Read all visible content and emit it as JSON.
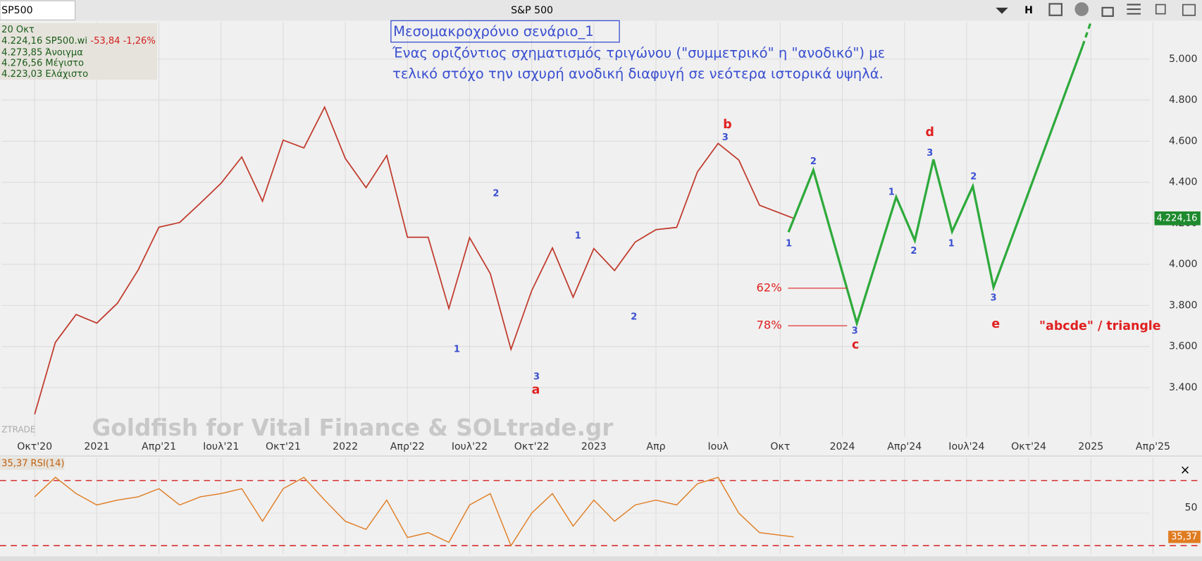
{
  "header": {
    "symbol": "SP500",
    "title": "S&P 500",
    "button": "H"
  },
  "info": {
    "date": "20 Οκτ",
    "last": "4.224,16 SP500.wi",
    "change": "-53,84 -1,26%",
    "open": "4.273,85 Άνοιγμα",
    "high": "4.276,56 Μέγιστο",
    "low": "4.223,03 Ελάχιστο"
  },
  "annotation": {
    "title": "Μεσομακροχρόνιο σενάριο_1",
    "lines": [
      "Ένας οριζόντιος σχηματισμός τριγώνου (\"συμμετρικό\" η \"ανοδικό\") με",
      "τελικό στόχο την ισχυρή ανοδική διαφυγή σε νεότερα ιστορικά υψηλά."
    ]
  },
  "watermark": "Goldfish for Vital Finance & SOLtrade.gr",
  "logo": "ZTRADE",
  "pattern_label": "\"abcde\" / triangle",
  "wave_labels": [
    "1",
    "2",
    "3",
    "a",
    "1",
    "2",
    "3",
    "b",
    "1",
    "2",
    "3",
    "c",
    "1",
    "2",
    "3",
    "d",
    "1",
    "2",
    "3",
    "e"
  ],
  "chart_data": [
    {
      "type": "line",
      "x": [
        0,
        1,
        2,
        3,
        4,
        5,
        6,
        7,
        8,
        9,
        10,
        11,
        12,
        13,
        14,
        15,
        16,
        17,
        18,
        19,
        20,
        21,
        22,
        23,
        24,
        25,
        26,
        27,
        28,
        29,
        30,
        31,
        32,
        33,
        34,
        35,
        36.65
      ],
      "series": [
        {
          "color": "#c0392b",
          "values": [
            3270,
            3620,
            3756,
            3714,
            3811,
            3973,
            4181,
            4204,
            4298,
            4395,
            4523,
            4308,
            4605,
            4567,
            4766,
            4516,
            4374,
            4530,
            4132,
            4132,
            3785,
            4130,
            3955,
            3586,
            3872,
            4080,
            3840,
            4077,
            3970,
            4109,
            4169,
            4180,
            4450,
            4589,
            4508,
            4288,
            4224
          ]
        },
        {
          "color": "#2eaa3c",
          "x": [
            36.4,
            37.6,
            39.7,
            41.6,
            42.5,
            43.4,
            44.3,
            45.3,
            46.3,
            50.6,
            51.1
          ],
          "values": [
            4157,
            4459,
            3713,
            4328,
            4116,
            4511,
            4160,
            4380,
            3888,
            5063,
            5210
          ]
        }
      ],
      "xlim": [
        -1.6,
        55.7
      ],
      "xticks": [
        {
          "value": 0,
          "label": "Οκτ'20"
        },
        {
          "value": 3,
          "label": "2021"
        },
        {
          "value": 6,
          "label": "Απρ'21"
        },
        {
          "value": 9,
          "label": "Ιουλ'21"
        },
        {
          "value": 12,
          "label": "Οκτ'21"
        },
        {
          "value": 15,
          "label": "2022"
        },
        {
          "value": 18,
          "label": "Απρ'22"
        },
        {
          "value": 21,
          "label": "Ιουλ'22"
        },
        {
          "value": 24,
          "label": "Οκτ'22"
        },
        {
          "value": 27,
          "label": "2023"
        },
        {
          "value": 30,
          "label": "Απρ"
        },
        {
          "value": 33,
          "label": "Ιουλ"
        },
        {
          "value": 36,
          "label": "Οκτ"
        },
        {
          "value": 39,
          "label": "2024"
        },
        {
          "value": 42,
          "label": "Απρ'24"
        },
        {
          "value": 45,
          "label": "Ιουλ'24"
        },
        {
          "value": 48,
          "label": "Οκτ'24"
        },
        {
          "value": 51,
          "label": "2025"
        },
        {
          "value": 54,
          "label": "Απρ'25"
        }
      ],
      "ylim": [
        3160,
        5180
      ],
      "yticks": [
        {
          "value": 3400,
          "label": "3.400"
        },
        {
          "value": 3600,
          "label": "3.600"
        },
        {
          "value": 3800,
          "label": "3.800"
        },
        {
          "value": 4000,
          "label": "4.000"
        },
        {
          "value": 4200,
          "label": "4.200"
        },
        {
          "value": 4400,
          "label": "4.400"
        },
        {
          "value": 4600,
          "label": "4.600"
        },
        {
          "value": 4800,
          "label": "4.800"
        },
        {
          "value": 5000,
          "label": "5.000"
        }
      ],
      "grid": true,
      "last_value": {
        "value": 4224.16,
        "label": "4.224,16"
      },
      "fib_levels": [
        {
          "label": "62%",
          "price": 3884
        },
        {
          "label": "78%",
          "price": 3701
        }
      ]
    },
    {
      "type": "line",
      "title": "RSI(14)",
      "color": "#e07b20",
      "values": [
        60,
        72,
        62,
        55,
        58,
        60,
        65,
        55,
        60,
        62,
        65,
        45,
        65,
        72,
        58,
        45,
        40,
        58,
        35,
        38,
        32,
        55,
        62,
        30,
        50,
        62,
        42,
        58,
        45,
        55,
        58,
        55,
        68,
        72,
        50,
        38,
        35.37
      ],
      "ylim": [
        25,
        84
      ],
      "yticks": [
        50
      ],
      "levels": [
        30,
        70
      ],
      "last_value": {
        "value": 35.37,
        "label": "35,37"
      }
    }
  ]
}
